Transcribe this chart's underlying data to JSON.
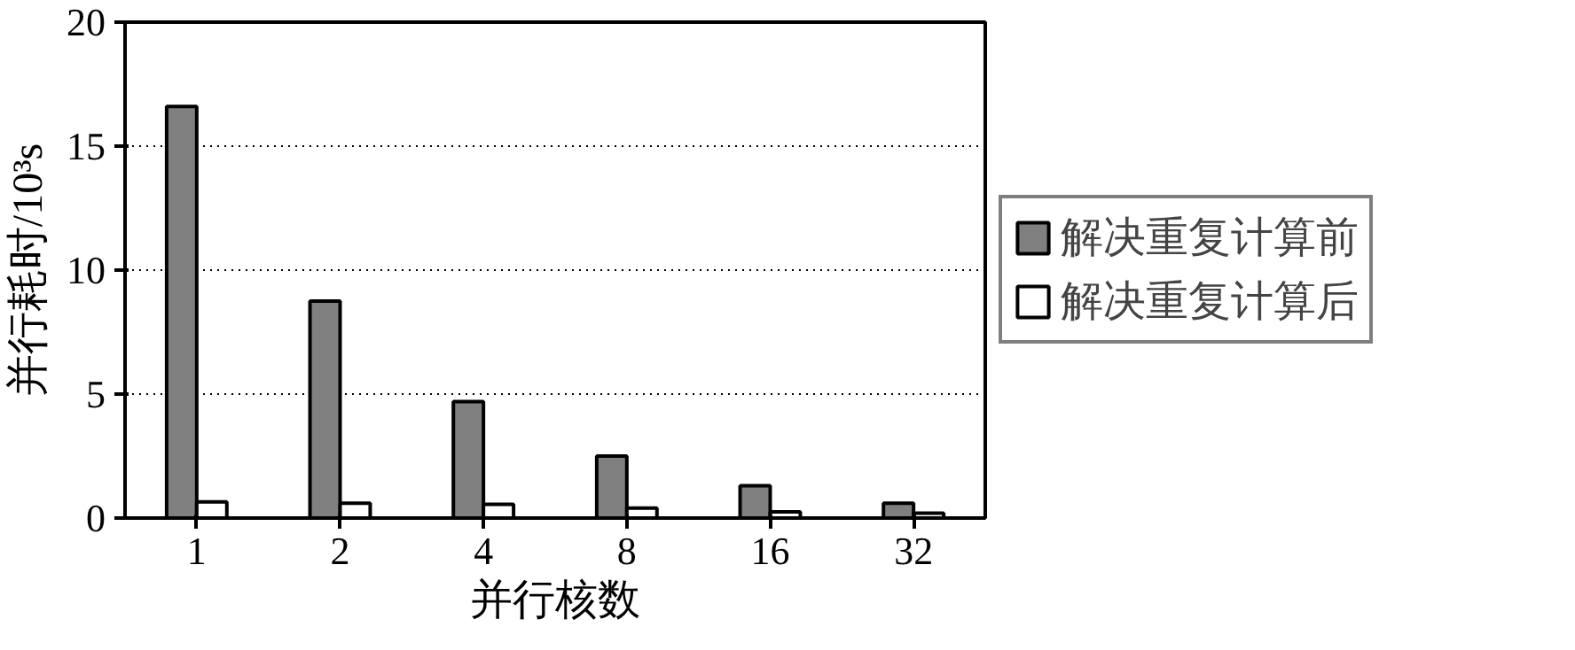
{
  "chart_data": {
    "type": "bar",
    "xlabel": "并行核数",
    "ylabel": "并行耗时/10³s",
    "categories": [
      "1",
      "2",
      "4",
      "8",
      "16",
      "32"
    ],
    "series": [
      {
        "name": "解决重复计算前",
        "color": "#808080",
        "values": [
          16.6,
          8.75,
          4.7,
          2.5,
          1.3,
          0.6
        ]
      },
      {
        "name": "解决重复计算后",
        "color": "#ffffff",
        "values": [
          0.65,
          0.6,
          0.55,
          0.4,
          0.25,
          0.2
        ]
      }
    ],
    "ylim": [
      0,
      20
    ],
    "yticks": [
      0,
      5,
      10,
      15,
      20
    ],
    "grid": "y",
    "legend": "right"
  }
}
